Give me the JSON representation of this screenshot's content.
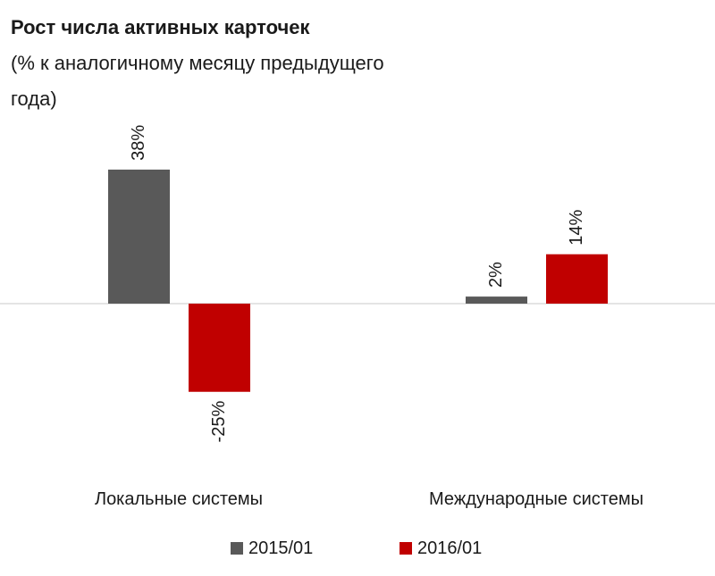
{
  "chart_data": {
    "type": "bar",
    "title": "Рост числа активных  карточек",
    "subtitle_lines": [
      "(% к аналогичному месяцу предыдущего",
      "года)"
    ],
    "categories": [
      "Локальные системы",
      "Международные системы"
    ],
    "series": [
      {
        "name": "2015/01",
        "values": [
          38,
          2
        ],
        "labels": [
          "38%",
          "2%"
        ],
        "color": "#595959"
      },
      {
        "name": "2016/01",
        "values": [
          -25,
          14
        ],
        "labels": [
          "-25%",
          "14%"
        ],
        "color": "#c00000"
      }
    ],
    "legend": "bottom",
    "grid": false,
    "xlabel": "",
    "ylabel": "",
    "ylim": [
      -25,
      38
    ]
  }
}
